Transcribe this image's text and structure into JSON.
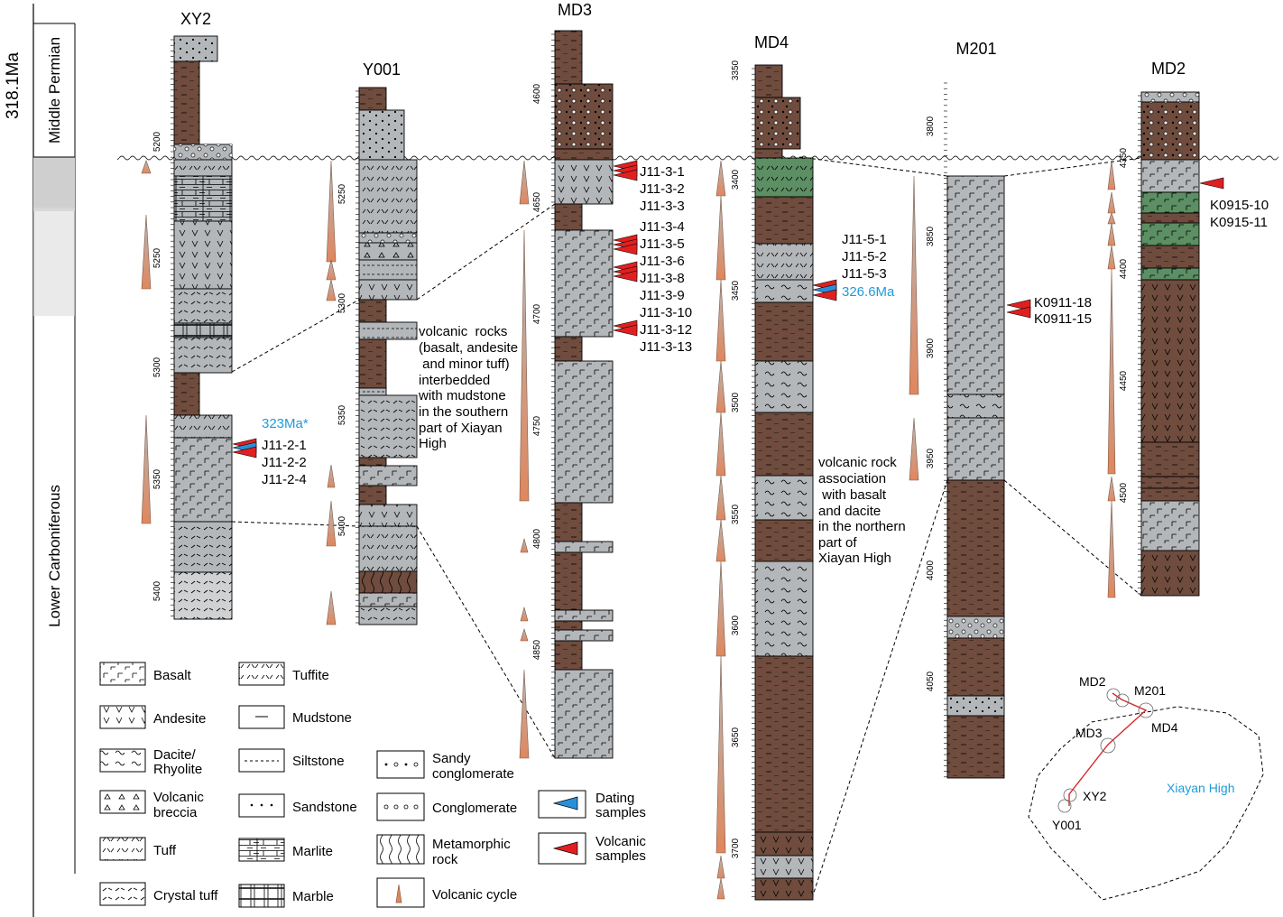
{
  "figure": {
    "age_label": "318.1Ma",
    "periods": {
      "upper": "Middle Permian",
      "lower": "Lower Carboniferous"
    },
    "wells": [
      {
        "name": "XY2",
        "depth_ticks": [
          "5200",
          "5250",
          "5300",
          "5350",
          "5400"
        ]
      },
      {
        "name": "Y001",
        "depth_ticks": [
          "5250",
          "5300",
          "5350",
          "5400"
        ]
      },
      {
        "name": "MD3",
        "depth_ticks": [
          "4600",
          "4650",
          "4700",
          "4750",
          "4800",
          "4850"
        ]
      },
      {
        "name": "MD4",
        "depth_ticks": [
          "3350",
          "3400",
          "3450",
          "3500",
          "3550",
          "3600",
          "3650",
          "3700"
        ]
      },
      {
        "name": "M201",
        "depth_ticks": [
          "3800",
          "3850",
          "3900",
          "3950",
          "4000",
          "4050"
        ]
      },
      {
        "name": "MD2",
        "depth_ticks": [
          "4350",
          "4400",
          "4450",
          "4500"
        ]
      }
    ],
    "sample_groups": {
      "xy2_dated_age": "323Ma*",
      "xy2": [
        "J11-2-1",
        "J11-2-2",
        "J11-2-4"
      ],
      "md3": [
        "J11-3-1",
        "J11-3-2",
        "J11-3-3",
        "J11-3-4",
        "J11-3-5",
        "J11-3-6",
        "J11-3-8",
        "J11-3-9",
        "J11-3-10",
        "J11-3-12",
        "J11-3-13"
      ],
      "md4": [
        "J11-5-1",
        "J11-5-2",
        "J11-5-3"
      ],
      "md4_dated_age": "326.6Ma",
      "m201": [
        "K0911-18",
        "K0911-15"
      ],
      "md2": [
        "K0915-10",
        "K0915-11"
      ]
    },
    "annotations": {
      "southern": [
        "volcanic  rocks",
        "(basalt, andesite",
        " and minor tuff)",
        "interbedded",
        "with mudstone",
        "in the southern",
        "part of Xiayan",
        "High"
      ],
      "northern": [
        "volcanic rock",
        "association",
        " with basalt",
        "and dacite",
        "in the northern",
        "part of",
        "Xiayan High"
      ]
    },
    "legend": [
      {
        "label": [
          "Basalt"
        ]
      },
      {
        "label": [
          "Andesite"
        ]
      },
      {
        "label": [
          "Dacite/",
          "Rhyolite"
        ]
      },
      {
        "label": [
          "Volcanic",
          "breccia"
        ]
      },
      {
        "label": [
          "Tuff"
        ]
      },
      {
        "label": [
          "Crystal tuff"
        ]
      },
      {
        "label": [
          "Tuffite"
        ]
      },
      {
        "label": [
          "Mudstone"
        ]
      },
      {
        "label": [
          "Siltstone"
        ]
      },
      {
        "label": [
          "Sandstone"
        ]
      },
      {
        "label": [
          "Marlite"
        ]
      },
      {
        "label": [
          "Marble"
        ]
      },
      {
        "label": [
          "Sandy",
          "conglomerate"
        ]
      },
      {
        "label": [
          "Conglomerate"
        ]
      },
      {
        "label": [
          "Metamorphic",
          "rock"
        ]
      },
      {
        "label": [
          "Volcanic cycle"
        ]
      },
      {
        "label": [
          "Dating",
          "samples"
        ]
      },
      {
        "label": [
          "Volcanic",
          "samples"
        ]
      }
    ],
    "inset_map": {
      "region_label": "Xiayan High",
      "wells": [
        "MD2",
        "M201",
        "MD3",
        "MD4",
        "XY2",
        "Y001"
      ]
    },
    "colors": {
      "mudstone": "#6f4c3e",
      "gray_rock": "#b4b7ba",
      "light_rock": "#cfd1d3",
      "basalt_green": "#5c8f63",
      "cycle": "#e0875d",
      "volcanic_sample": "#e02020",
      "dating_sample": "#2a8fd9",
      "blue_text": "#1f9bd8"
    }
  }
}
